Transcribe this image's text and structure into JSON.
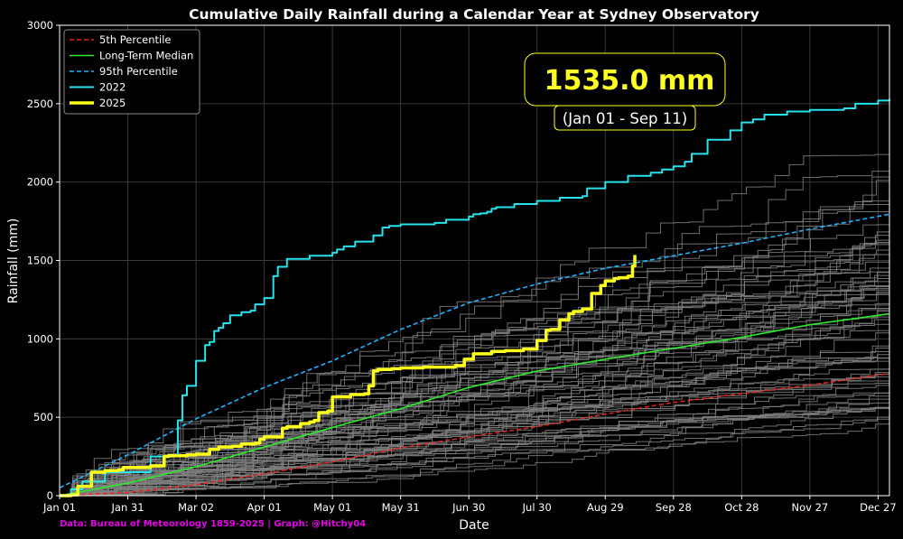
{
  "chart_data": {
    "type": "line",
    "title": "Cumulative Daily Rainfall during a Calendar Year at Sydney Observatory",
    "xlabel": "Date",
    "ylabel": "Rainfall (mm)",
    "x_unit": "day of year (Jan 01 = 0)",
    "xlim": [
      0,
      365
    ],
    "ylim": [
      0,
      3000
    ],
    "grid": true,
    "legend_position": "top-left",
    "x_ticks": [
      {
        "day": 0,
        "label": "Jan 01"
      },
      {
        "day": 30,
        "label": "Jan 31"
      },
      {
        "day": 60,
        "label": "Mar 02"
      },
      {
        "day": 90,
        "label": "Apr 01"
      },
      {
        "day": 120,
        "label": "May 01"
      },
      {
        "day": 150,
        "label": "May 31"
      },
      {
        "day": 180,
        "label": "Jun 30"
      },
      {
        "day": 210,
        "label": "Jul 30"
      },
      {
        "day": 240,
        "label": "Aug 29"
      },
      {
        "day": 270,
        "label": "Sep 28"
      },
      {
        "day": 300,
        "label": "Oct 28"
      },
      {
        "day": 330,
        "label": "Nov 27"
      },
      {
        "day": 360,
        "label": "Dec 27"
      }
    ],
    "y_ticks": [
      0,
      500,
      1000,
      1500,
      2000,
      2500,
      3000
    ],
    "series": [
      {
        "name": "5th Percentile",
        "color": "#e8231e",
        "dash": true,
        "width": 1.5,
        "x": [
          0,
          30,
          60,
          90,
          120,
          150,
          180,
          210,
          240,
          270,
          300,
          330,
          365
        ],
        "y": [
          0,
          20,
          70,
          140,
          215,
          305,
          375,
          440,
          520,
          595,
          650,
          705,
          780
        ]
      },
      {
        "name": "Long-Term Median",
        "color": "#2ee82e",
        "dash": false,
        "width": 1.6,
        "x": [
          0,
          30,
          60,
          90,
          120,
          150,
          180,
          210,
          240,
          270,
          300,
          330,
          365
        ],
        "y": [
          0,
          80,
          185,
          310,
          435,
          555,
          690,
          795,
          870,
          940,
          1010,
          1090,
          1160
        ]
      },
      {
        "name": "95th Percentile",
        "color": "#1fb4ff",
        "dash": true,
        "width": 1.6,
        "x": [
          0,
          30,
          60,
          90,
          120,
          150,
          180,
          210,
          240,
          270,
          300,
          330,
          365
        ],
        "y": [
          50,
          260,
          490,
          690,
          860,
          1060,
          1230,
          1350,
          1450,
          1530,
          1610,
          1700,
          1795
        ]
      },
      {
        "name": "2022",
        "color": "#25e4ee",
        "dash": false,
        "width": 2,
        "x": [
          0,
          5,
          10,
          20,
          40,
          50,
          52,
          54,
          56,
          60,
          64,
          66,
          68,
          70,
          72,
          75,
          80,
          84,
          86,
          90,
          94,
          96,
          100,
          110,
          120,
          122,
          125,
          130,
          138,
          142,
          145,
          150,
          165,
          170,
          180,
          182,
          185,
          188,
          190,
          192,
          200,
          210,
          220,
          230,
          232,
          240,
          250,
          260,
          265,
          270,
          275,
          278,
          285,
          295,
          300,
          305,
          310,
          320,
          330,
          345,
          350,
          360,
          365
        ],
        "y": [
          0,
          40,
          90,
          150,
          250,
          260,
          480,
          640,
          700,
          860,
          960,
          980,
          1050,
          1070,
          1100,
          1150,
          1170,
          1180,
          1220,
          1260,
          1400,
          1460,
          1510,
          1530,
          1550,
          1570,
          1590,
          1620,
          1660,
          1710,
          1720,
          1730,
          1740,
          1760,
          1780,
          1795,
          1800,
          1810,
          1830,
          1840,
          1860,
          1880,
          1900,
          1910,
          1960,
          2000,
          2040,
          2060,
          2080,
          2100,
          2130,
          2180,
          2270,
          2330,
          2380,
          2400,
          2430,
          2450,
          2460,
          2470,
          2500,
          2520,
          2530
        ]
      },
      {
        "name": "2025",
        "color": "#ffff1a",
        "dash": false,
        "width": 3.5,
        "x": [
          0,
          5,
          8,
          14,
          20,
          26,
          28,
          40,
          46,
          48,
          56,
          60,
          66,
          70,
          76,
          80,
          86,
          88,
          90,
          98,
          100,
          106,
          110,
          112,
          114,
          118,
          120,
          128,
          134,
          136,
          138,
          140,
          146,
          150,
          160,
          168,
          174,
          178,
          182,
          190,
          196,
          204,
          210,
          214,
          216,
          220,
          224,
          226,
          230,
          234,
          238,
          240,
          244,
          246,
          250,
          252,
          253
        ],
        "y": [
          0,
          5,
          60,
          150,
          160,
          165,
          180,
          190,
          250,
          255,
          260,
          265,
          295,
          310,
          315,
          330,
          335,
          360,
          375,
          430,
          440,
          460,
          470,
          480,
          530,
          540,
          630,
          645,
          650,
          700,
          795,
          805,
          810,
          815,
          820,
          820,
          830,
          870,
          905,
          920,
          925,
          935,
          990,
          1055,
          1060,
          1120,
          1160,
          1175,
          1190,
          1290,
          1340,
          1370,
          1385,
          1390,
          1400,
          1465,
          1535
        ]
      }
    ]
  },
  "annotation": {
    "value": "1535.0 mm",
    "range": "(Jan 01 - Sep 11)",
    "box_edge_color": "#ffff1a"
  },
  "credit": "Data: Bureau of Meteorology 1859-2025 | Graph: @Hitchy04",
  "colors": {
    "background": "#000000",
    "historical_years": "#808080",
    "grid": "#3a3a3a"
  }
}
